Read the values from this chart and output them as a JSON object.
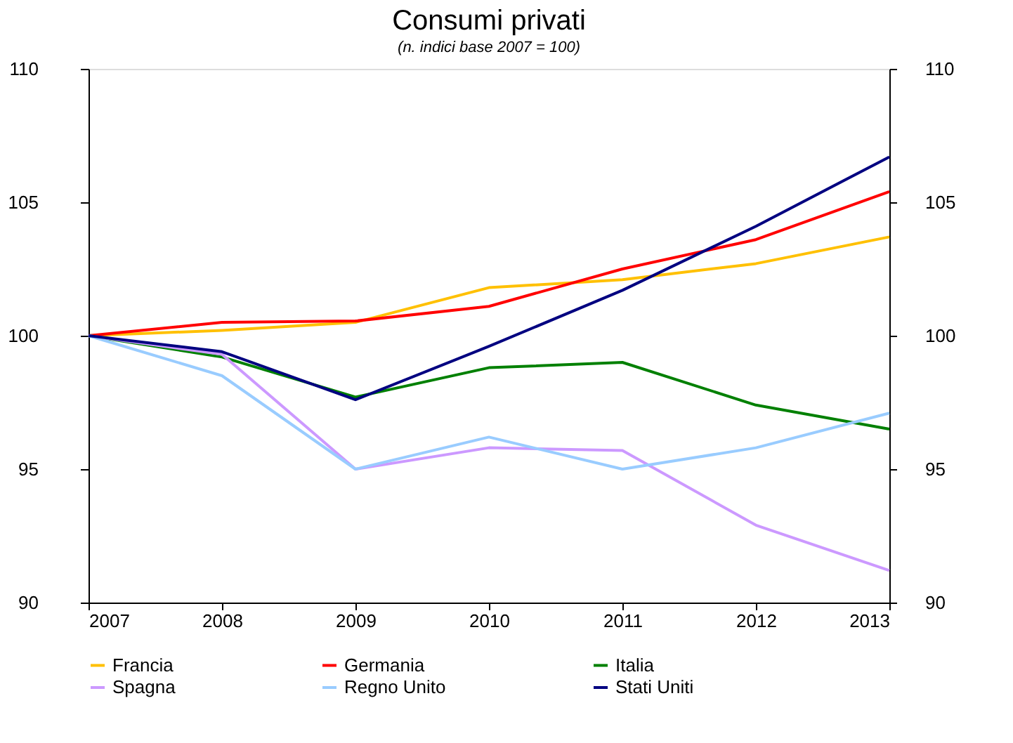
{
  "chart_data": {
    "type": "line",
    "title": "Consumi privati",
    "subtitle": "(n. indici base 2007 = 100)",
    "categories": [
      "2007",
      "2008",
      "2009",
      "2010",
      "2011",
      "2012",
      "2013"
    ],
    "series": [
      {
        "name": "Francia",
        "color": "#ffc000",
        "values": [
          100,
          100.2,
          100.5,
          101.8,
          102.1,
          102.7,
          103.7
        ]
      },
      {
        "name": "Germania",
        "color": "#ff0000",
        "values": [
          100,
          100.5,
          100.55,
          101.1,
          102.5,
          103.6,
          105.4
        ]
      },
      {
        "name": "Italia",
        "color": "#008000",
        "values": [
          100,
          99.2,
          97.7,
          98.8,
          99.0,
          97.4,
          96.5
        ]
      },
      {
        "name": "Spagna",
        "color": "#cc99ff",
        "values": [
          100,
          99.3,
          95.0,
          95.8,
          95.7,
          92.9,
          91.2
        ]
      },
      {
        "name": "Regno Unito",
        "color": "#99ccff",
        "values": [
          100,
          98.5,
          95.0,
          96.2,
          95.0,
          95.8,
          97.1
        ]
      },
      {
        "name": "Stati Uniti",
        "color": "#000080",
        "values": [
          100,
          99.4,
          97.6,
          99.6,
          101.7,
          104.1,
          106.7
        ]
      }
    ],
    "ylim": [
      90,
      110
    ],
    "yticks": [
      90,
      95,
      100,
      105,
      110
    ],
    "y2lim": [
      90,
      110
    ],
    "y2ticks": [
      90,
      95,
      100,
      105,
      110
    ],
    "grid": false,
    "legend": "bottom",
    "marker": "none",
    "line_style": "solid"
  }
}
